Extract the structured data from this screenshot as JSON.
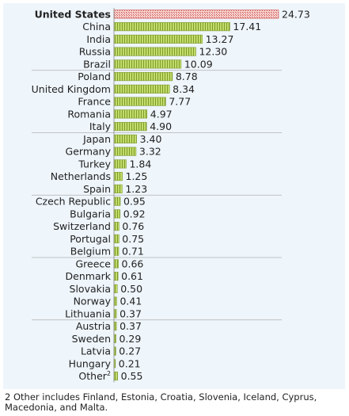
{
  "chart_data": {
    "type": "bar",
    "orientation": "horizontal",
    "categories": [
      "United States",
      "China",
      "India",
      "Russia",
      "Brazil",
      "Poland",
      "United Kingdom",
      "France",
      "Romania",
      "Italy",
      "Japan",
      "Germany",
      "Turkey",
      "Netherlands",
      "Spain",
      "Czech Republic",
      "Bulgaria",
      "Switzerland",
      "Portugal",
      "Belgium",
      "Greece",
      "Denmark",
      "Slovakia",
      "Norway",
      "Lithuania",
      "Austria",
      "Sweden",
      "Latvia",
      "Hungary",
      "Other"
    ],
    "values": [
      24.73,
      17.41,
      13.27,
      12.3,
      10.09,
      8.78,
      8.34,
      7.77,
      4.97,
      4.9,
      3.4,
      3.32,
      1.84,
      1.25,
      1.23,
      0.95,
      0.92,
      0.76,
      0.75,
      0.71,
      0.66,
      0.61,
      0.5,
      0.41,
      0.37,
      0.37,
      0.29,
      0.27,
      0.21,
      0.55
    ],
    "value_labels": [
      "24.73",
      "17.41",
      "13.27",
      "12.30",
      "10.09",
      "8.78",
      "8.34",
      "7.77",
      "4.97",
      "4.90",
      "3.40",
      "3.32",
      "1.84",
      "1.25",
      "1.23",
      "0.95",
      "0.92",
      "0.76",
      "0.75",
      "0.71",
      "0.66",
      "0.61",
      "0.50",
      "0.41",
      "0.37",
      "0.37",
      "0.29",
      "0.27",
      "0.21",
      "0.55"
    ],
    "highlight_category": "United States",
    "label_superscripts": {
      "Other": "2"
    },
    "group_size": 5,
    "xlim": [
      0,
      24.73
    ],
    "grid": false,
    "title": "",
    "xlabel": "",
    "ylabel": "",
    "colors": {
      "bar": "#c2dc6a",
      "bar_hatch": "#7e9c2c",
      "highlight": "#f3c4c0",
      "highlight_hatch": "#d0504c",
      "separator": "#b0b0b0",
      "background": "#eef5fb"
    }
  },
  "footnote": "2 Other includes Finland, Estonia, Croatia, Slovenia, Iceland, Cyprus, Macedonia, and Malta."
}
